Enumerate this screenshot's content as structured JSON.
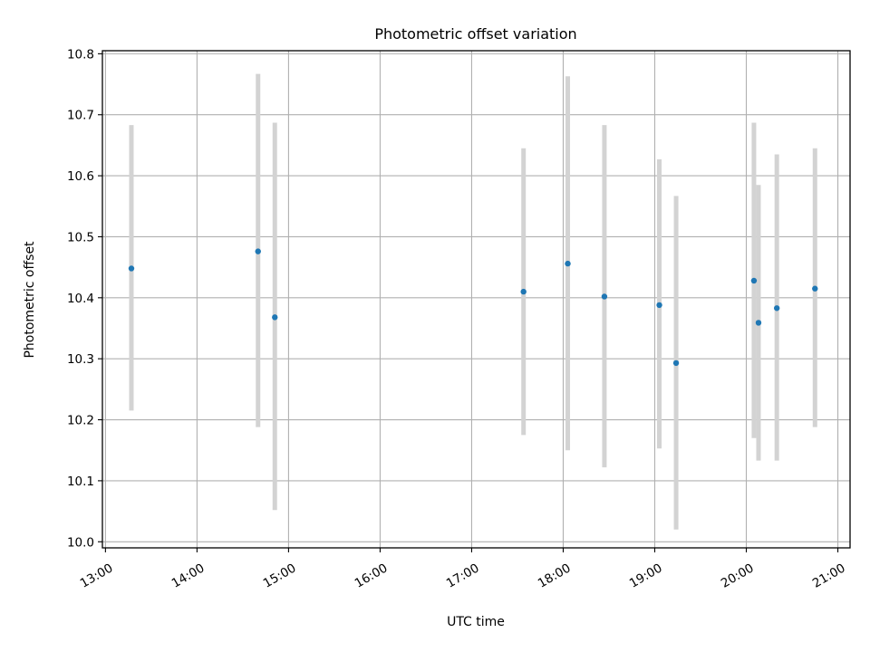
{
  "chart_data": {
    "type": "scatter",
    "title": "Photometric offset variation",
    "xlabel": "UTC time",
    "ylabel": "Photometric offset",
    "x_ticks": [
      "13:00",
      "14:00",
      "15:00",
      "16:00",
      "17:00",
      "18:00",
      "19:00",
      "20:00",
      "21:00"
    ],
    "y_ticks": [
      "10.0",
      "10.1",
      "10.2",
      "10.3",
      "10.4",
      "10.5",
      "10.6",
      "10.7",
      "10.8"
    ],
    "xlim": [
      "12:58",
      "21:08"
    ],
    "ylim": [
      9.99,
      10.805
    ],
    "grid": true,
    "error_bars": true,
    "colors": {
      "points": "#1f77b4",
      "error_bars": "#d3d3d3",
      "grid": "#b0b0b0"
    },
    "series": [
      {
        "points": [
          {
            "x": "13:17",
            "y": 10.448,
            "ylow": 10.215,
            "yhigh": 10.683
          },
          {
            "x": "14:40",
            "y": 10.476,
            "ylow": 10.188,
            "yhigh": 10.767
          },
          {
            "x": "14:51",
            "y": 10.368,
            "ylow": 10.052,
            "yhigh": 10.687
          },
          {
            "x": "17:34",
            "y": 10.41,
            "ylow": 10.175,
            "yhigh": 10.645
          },
          {
            "x": "18:03",
            "y": 10.456,
            "ylow": 10.15,
            "yhigh": 10.763
          },
          {
            "x": "18:27",
            "y": 10.402,
            "ylow": 10.122,
            "yhigh": 10.683
          },
          {
            "x": "19:03",
            "y": 10.388,
            "ylow": 10.153,
            "yhigh": 10.627
          },
          {
            "x": "19:14",
            "y": 10.293,
            "ylow": 10.02,
            "yhigh": 10.567
          },
          {
            "x": "20:05",
            "y": 10.428,
            "ylow": 10.17,
            "yhigh": 10.687
          },
          {
            "x": "20:08",
            "y": 10.359,
            "ylow": 10.133,
            "yhigh": 10.585
          },
          {
            "x": "20:20",
            "y": 10.383,
            "ylow": 10.133,
            "yhigh": 10.635
          },
          {
            "x": "20:45",
            "y": 10.415,
            "ylow": 10.188,
            "yhigh": 10.645
          }
        ]
      }
    ]
  }
}
